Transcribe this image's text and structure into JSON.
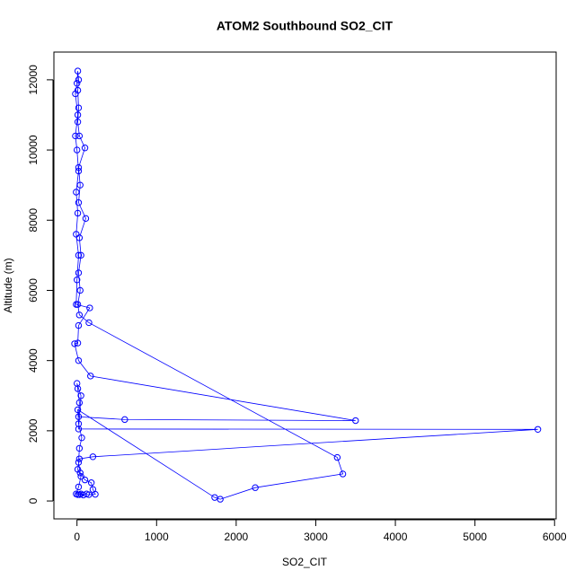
{
  "chart_data": {
    "type": "line",
    "title": "ATOM2 Southbound SO2_CIT",
    "xlabel": "SO2_CIT",
    "ylabel": "Altitude (m)",
    "color": "#0000ff",
    "markers": true,
    "x": [
      10,
      50,
      150,
      230,
      200,
      180,
      100,
      40,
      20,
      30,
      60,
      20,
      10,
      1730,
      1800,
      2240,
      3340,
      3270,
      150,
      30,
      10,
      40,
      20,
      50,
      30,
      110,
      20,
      40,
      20,
      100,
      30,
      10,
      20,
      10,
      20,
      10,
      0,
      -20,
      10,
      -20,
      0,
      20,
      -10,
      10,
      -10,
      20,
      0,
      -10,
      160,
      20,
      10,
      -30,
      20,
      170,
      3500,
      600,
      20,
      30,
      10,
      0,
      50,
      20,
      5790,
      200,
      30,
      10,
      50,
      20,
      -10,
      30,
      80,
      120
    ],
    "values": [
      180,
      200,
      180,
      190,
      330,
      520,
      600,
      800,
      1100,
      1500,
      1800,
      2200,
      2600,
      100,
      50,
      380,
      770,
      1240,
      5080,
      5300,
      5600,
      6000,
      6500,
      7000,
      7500,
      8050,
      8500,
      9000,
      9500,
      10060,
      10400,
      10800,
      11200,
      11700,
      12000,
      12250,
      11900,
      11600,
      11000,
      10400,
      10000,
      9400,
      8800,
      8200,
      7600,
      7000,
      6300,
      5600,
      5500,
      5000,
      4500,
      4480,
      4000,
      3560,
      2290,
      2320,
      2400,
      2800,
      3200,
      3350,
      3000,
      2050,
      2040,
      1260,
      1200,
      900,
      700,
      400,
      200,
      180,
      170,
      200
    ],
    "xlim": [
      -290,
      6020
    ],
    "ylim": [
      -510,
      12790
    ],
    "xticks": [
      0,
      1000,
      2000,
      3000,
      4000,
      5000,
      6000
    ],
    "yticks": [
      0,
      2000,
      4000,
      6000,
      8000,
      10000,
      12000
    ]
  }
}
